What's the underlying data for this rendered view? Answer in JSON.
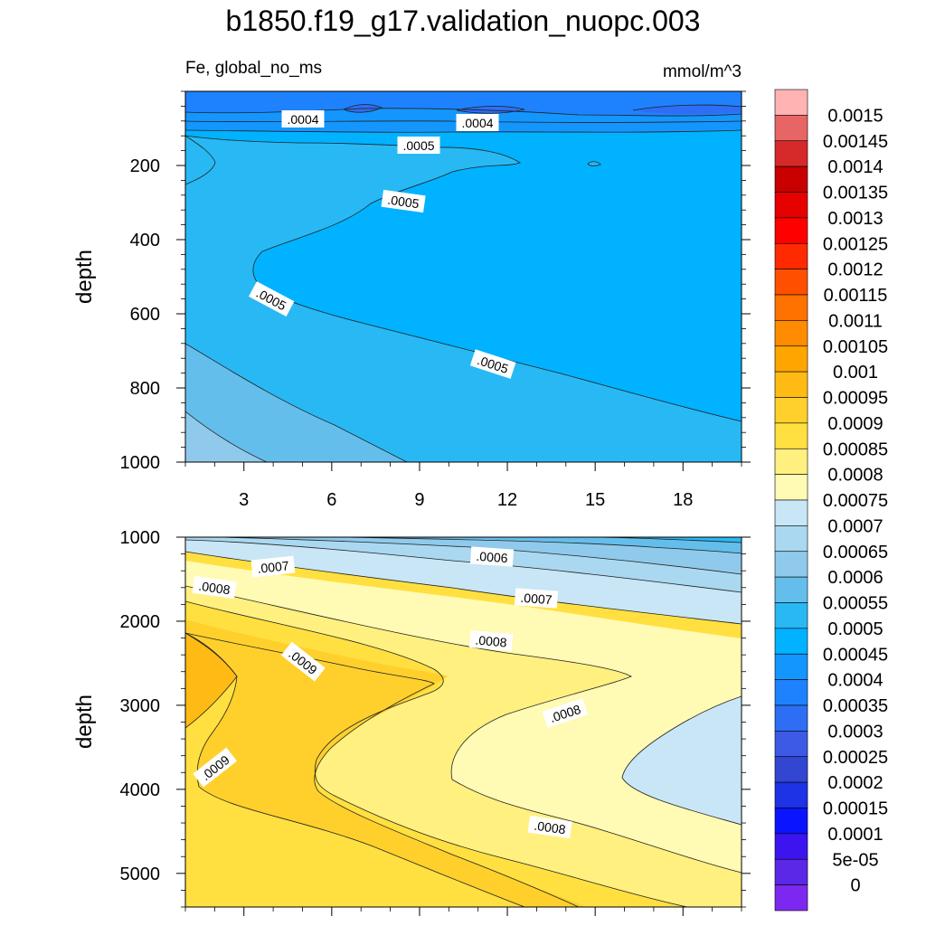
{
  "title": "b1850.f19_g17.validation_nuopc.003",
  "variable_label": "Fe, global_no_ms",
  "units_label": "mmol/m^3",
  "colorbar": {
    "labels": [
      "0.0015",
      "0.00145",
      "0.0014",
      "0.00135",
      "0.0013",
      "0.00125",
      "0.0012",
      "0.00115",
      "0.0011",
      "0.00105",
      "0.001",
      "0.00095",
      "0.0009",
      "0.00085",
      "0.0008",
      "0.00075",
      "0.0007",
      "0.00065",
      "0.0006",
      "0.00055",
      "0.0005",
      "0.00045",
      "0.0004",
      "0.00035",
      "0.0003",
      "0.00025",
      "0.0002",
      "0.00015",
      "0.0001",
      "5e-05",
      "0"
    ],
    "colors": [
      "#ffb3b3",
      "#e86565",
      "#d62a2a",
      "#c80000",
      "#e60000",
      "#ff0000",
      "#ff2a00",
      "#ff5000",
      "#ff7200",
      "#ff8c00",
      "#ffa500",
      "#ffbb14",
      "#ffd02c",
      "#ffe040",
      "#fff080",
      "#fffab4",
      "#c8e6f5",
      "#aad8f0",
      "#8fcaec",
      "#64beeb",
      "#28b9f5",
      "#00b2ff",
      "#1496ff",
      "#1e82ff",
      "#2d6ef5",
      "#3c5ae6",
      "#3246d2",
      "#1e32e6",
      "#0a14ff",
      "#3c14f0",
      "#5a28e6",
      "#7d28f0"
    ]
  },
  "chart_data": [
    {
      "type": "contour",
      "panel": "upper",
      "xlabel": "",
      "ylabel": "depth",
      "xlim": [
        1,
        20
      ],
      "ylim": [
        1000,
        0
      ],
      "xticks": [
        "3",
        "6",
        "9",
        "12",
        "15",
        "18"
      ],
      "yticks": [
        "200",
        "400",
        "600",
        "800",
        "1000"
      ],
      "xtick_values": [
        3,
        6,
        9,
        12,
        15,
        18
      ],
      "ytick_values": [
        200,
        400,
        600,
        800,
        1000
      ],
      "contour_labels": [
        ".0004",
        ".0004",
        ".0005",
        ".0005",
        ".0005",
        ".0005"
      ],
      "fill_levels": [
        {
          "level": "0.00035-0.0004",
          "color": "#1e82ff"
        },
        {
          "level": "0.0004-0.00045",
          "color": "#1496ff"
        },
        {
          "level": "0.00045-0.0005",
          "color": "#00b2ff"
        },
        {
          "level": "0.0005-0.00055",
          "color": "#28b9f5"
        },
        {
          "level": "0.00055-0.0006",
          "color": "#64beeb"
        },
        {
          "level": "0.0006-0.00065",
          "color": "#8fcaec"
        }
      ]
    },
    {
      "type": "contour",
      "panel": "lower",
      "xlabel": "",
      "ylabel": "depth",
      "xlim": [
        1,
        20
      ],
      "ylim": [
        5400,
        1000
      ],
      "yticks": [
        "1000",
        "2000",
        "3000",
        "4000",
        "5000"
      ],
      "ytick_values": [
        1000,
        2000,
        3000,
        4000,
        5000
      ],
      "contour_labels": [
        ".0006",
        ".0007",
        ".0007",
        ".0008",
        ".0008",
        ".0008",
        ".0008",
        ".0009",
        ".0009"
      ],
      "fill_levels": [
        {
          "level": "0.0005-0.00055",
          "color": "#28b9f5"
        },
        {
          "level": "0.00055-0.0006",
          "color": "#64beeb"
        },
        {
          "level": "0.0006-0.00065",
          "color": "#8fcaec"
        },
        {
          "level": "0.00065-0.0007",
          "color": "#aad8f0"
        },
        {
          "level": "0.0007-0.00075",
          "color": "#c8e6f5"
        },
        {
          "level": "0.00075-0.0008",
          "color": "#fffab4"
        },
        {
          "level": "0.0008-0.00085",
          "color": "#fff080"
        },
        {
          "level": "0.00085-0.0009",
          "color": "#ffe040"
        },
        {
          "level": "0.0009-0.00095",
          "color": "#ffd02c"
        },
        {
          "level": "0.00095-0.001",
          "color": "#ffbb14"
        }
      ]
    }
  ]
}
